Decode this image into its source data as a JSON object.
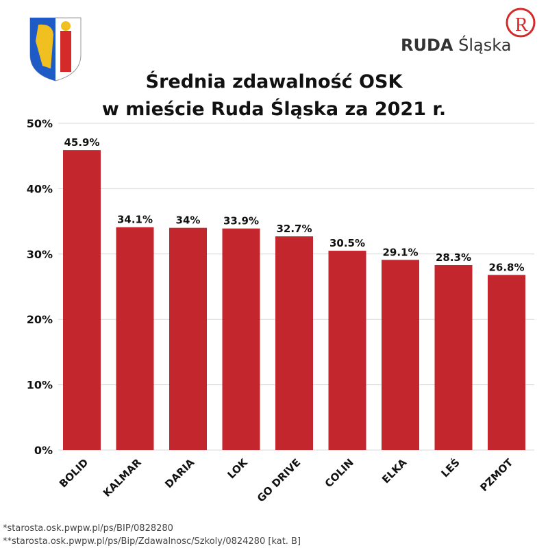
{
  "header": {
    "title_line1": "Średnia zdawalność OSK",
    "title_line2": "w mieście Ruda Śląska za 2021 r.",
    "brand_bold": "RUDA",
    "brand_regular": "Śląska"
  },
  "footnotes": [
    "*starosta.osk.pwpw.pl/ps/BIP/0828280",
    "**starosta.osk.pwpw.pl/ps/Bip/Zdawalnosc/Szkoly/0824280 [kat. B]"
  ],
  "chart_data": {
    "type": "bar",
    "title": "Średnia zdawalność OSK w mieście Ruda Śląska za 2021 r.",
    "xlabel": "",
    "ylabel": "",
    "categories": [
      "BOLID",
      "KALMAR",
      "DARIA",
      "LOK",
      "GO DRIVE",
      "COLIN",
      "ELKA",
      "LEŚ",
      "PZMOT"
    ],
    "values": [
      45.9,
      34.1,
      34,
      33.9,
      32.7,
      30.5,
      29.1,
      28.3,
      26.8
    ],
    "data_labels": [
      "45.9%",
      "34.1%",
      "34%",
      "33.9%",
      "32.7%",
      "30.5%",
      "29.1%",
      "28.3%",
      "26.8%"
    ],
    "ylim": [
      0,
      50
    ],
    "yticks": [
      0,
      10,
      20,
      30,
      40,
      50
    ],
    "ytick_labels": [
      "0%",
      "10%",
      "20%",
      "30%",
      "40%",
      "50%"
    ],
    "grid": true,
    "bar_color": "#c4262e"
  }
}
